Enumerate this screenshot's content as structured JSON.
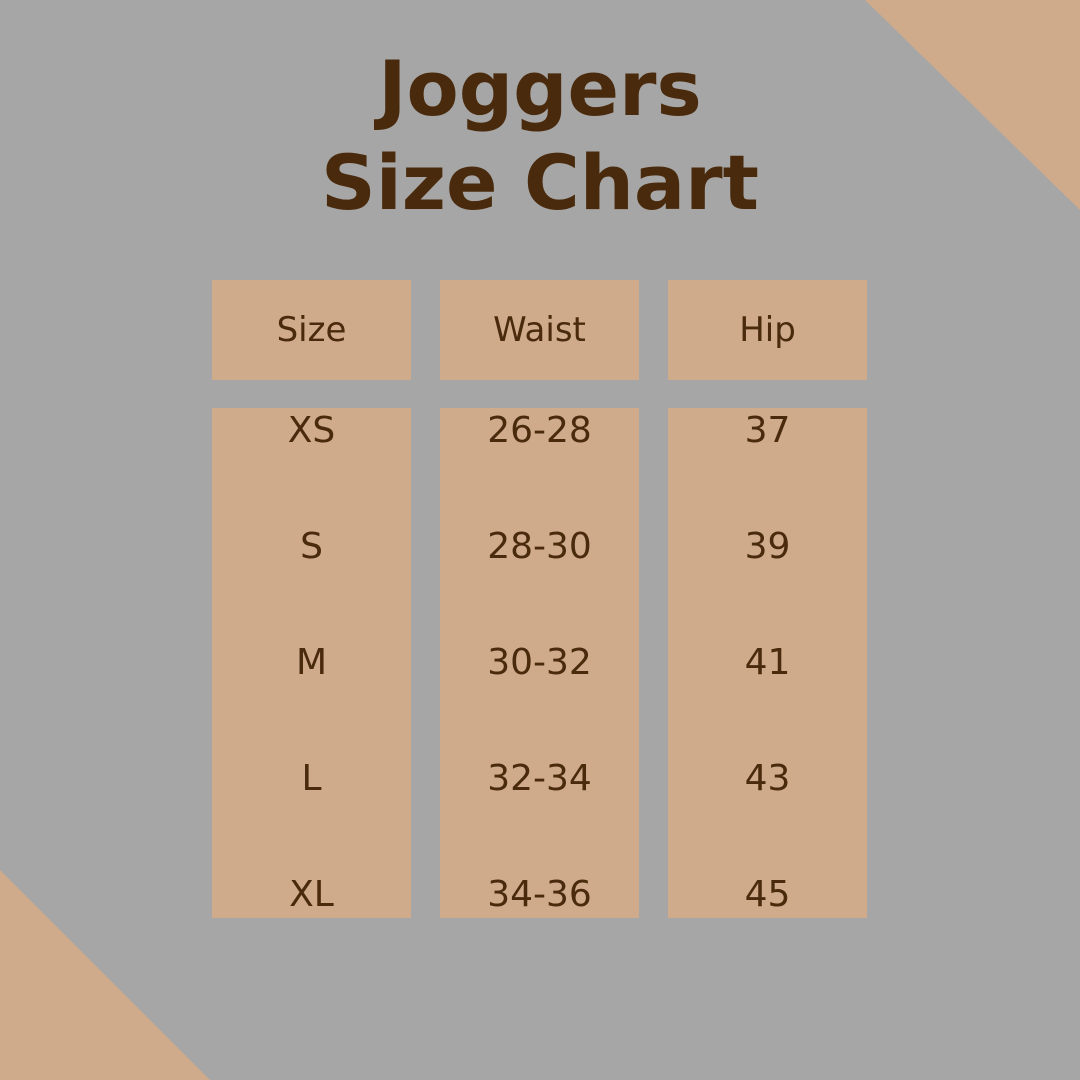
{
  "title": {
    "line1": "Joggers",
    "line2": "Size Chart"
  },
  "headers": [
    "Size",
    "Waist",
    "Hip"
  ],
  "rows": [
    [
      "XS",
      "26-28",
      "37"
    ],
    [
      "S",
      "28-30",
      "39"
    ],
    [
      "M",
      "30-32",
      "41"
    ],
    [
      "L",
      "32-34",
      "43"
    ],
    [
      "XL",
      "34-36",
      "45"
    ]
  ],
  "colors": {
    "background": "#a6a6a6",
    "accent": "#cfab8b",
    "text": "#4a2a0c"
  }
}
